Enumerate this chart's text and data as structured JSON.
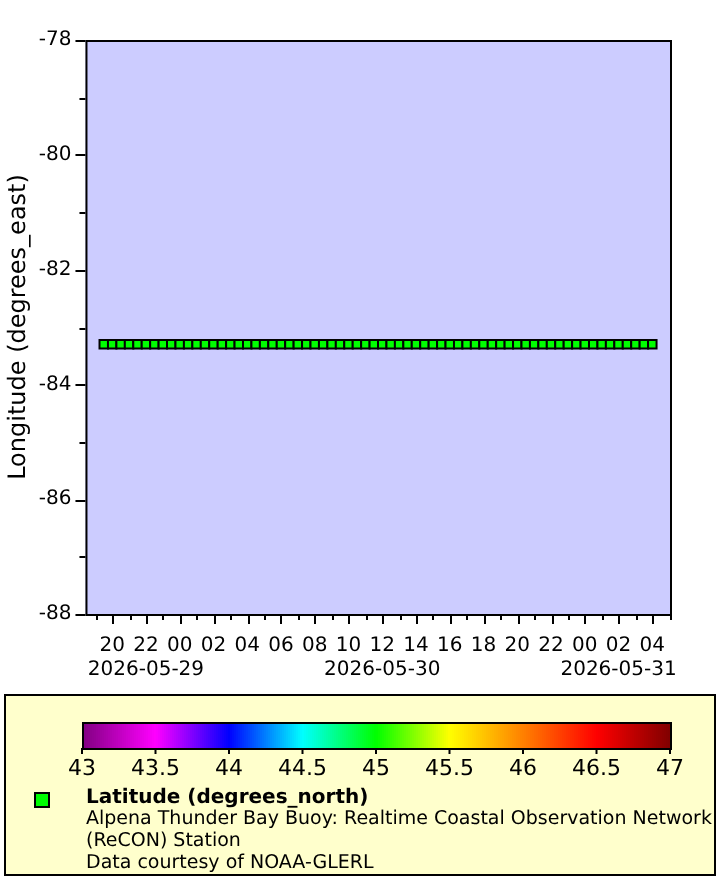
{
  "chart_data": {
    "type": "scatter",
    "xlabel": null,
    "ylabel": "Longitude (degrees_east)",
    "clabel": "Latitude (degrees_north)",
    "annotations": [
      "Alpena Thunder Bay Buoy: Realtime Coastal Observation Network (ReCON) Station",
      "Data courtesy of NOAA-GLERL"
    ],
    "x": [
      "2026-05-29T19:30",
      "2026-05-29T20:00",
      "2026-05-29T20:30",
      "2026-05-29T21:00",
      "2026-05-29T21:30",
      "2026-05-29T22:00",
      "2026-05-29T22:30",
      "2026-05-29T23:00",
      "2026-05-29T23:30",
      "2026-05-30T00:00",
      "2026-05-30T00:30",
      "2026-05-30T01:00",
      "2026-05-30T01:30",
      "2026-05-30T02:00",
      "2026-05-30T02:30",
      "2026-05-30T03:00",
      "2026-05-30T03:30",
      "2026-05-30T04:00",
      "2026-05-30T04:30",
      "2026-05-30T05:00",
      "2026-05-30T05:30",
      "2026-05-30T06:00",
      "2026-05-30T06:30",
      "2026-05-30T07:00",
      "2026-05-30T07:30",
      "2026-05-30T08:00",
      "2026-05-30T08:30",
      "2026-05-30T09:00",
      "2026-05-30T09:30",
      "2026-05-30T10:00",
      "2026-05-30T10:30",
      "2026-05-30T11:00",
      "2026-05-30T11:30",
      "2026-05-30T12:00",
      "2026-05-30T12:30",
      "2026-05-30T13:00",
      "2026-05-30T13:30",
      "2026-05-30T14:00",
      "2026-05-30T14:30",
      "2026-05-30T15:00",
      "2026-05-30T15:30",
      "2026-05-30T16:00",
      "2026-05-30T16:30",
      "2026-05-30T17:00",
      "2026-05-30T17:30",
      "2026-05-30T18:00",
      "2026-05-30T18:30",
      "2026-05-30T19:00",
      "2026-05-30T19:30",
      "2026-05-30T20:00",
      "2026-05-30T20:30",
      "2026-05-30T21:00",
      "2026-05-30T21:30",
      "2026-05-30T22:00",
      "2026-05-30T22:30",
      "2026-05-30T23:00",
      "2026-05-30T23:30",
      "2026-05-31T00:00",
      "2026-05-31T00:30",
      "2026-05-31T01:00",
      "2026-05-31T01:30",
      "2026-05-31T02:00",
      "2026-05-31T02:30",
      "2026-05-31T03:00",
      "2026-05-31T03:30",
      "2026-05-31T04:00"
    ],
    "values": [
      -83.3,
      -83.3,
      -83.3,
      -83.3,
      -83.3,
      -83.3,
      -83.3,
      -83.3,
      -83.3,
      -83.3,
      -83.3,
      -83.3,
      -83.3,
      -83.3,
      -83.3,
      -83.3,
      -83.3,
      -83.3,
      -83.3,
      -83.3,
      -83.3,
      -83.3,
      -83.3,
      -83.3,
      -83.3,
      -83.3,
      -83.3,
      -83.3,
      -83.3,
      -83.3,
      -83.3,
      -83.3,
      -83.3,
      -83.3,
      -83.3,
      -83.3,
      -83.3,
      -83.3,
      -83.3,
      -83.3,
      -83.3,
      -83.3,
      -83.3,
      -83.3,
      -83.3,
      -83.3,
      -83.3,
      -83.3,
      -83.3,
      -83.3,
      -83.3,
      -83.3,
      -83.3,
      -83.3,
      -83.3,
      -83.3,
      -83.3,
      -83.3,
      -83.3,
      -83.3,
      -83.3,
      -83.3,
      -83.3,
      -83.3,
      -83.3,
      -83.3
    ],
    "cvalues": [
      45,
      45,
      45,
      45,
      45,
      45,
      45,
      45,
      45,
      45,
      45,
      45,
      45,
      45,
      45,
      45,
      45,
      45,
      45,
      45,
      45,
      45,
      45,
      45,
      45,
      45,
      45,
      45,
      45,
      45,
      45,
      45,
      45,
      45,
      45,
      45,
      45,
      45,
      45,
      45,
      45,
      45,
      45,
      45,
      45,
      45,
      45,
      45,
      45,
      45,
      45,
      45,
      45,
      45,
      45,
      45,
      45,
      45,
      45,
      45,
      45,
      45,
      45,
      45,
      45,
      45
    ],
    "clim": [
      43,
      47
    ],
    "cticks": [
      43,
      43.5,
      44,
      44.5,
      45,
      45.5,
      46,
      46.5,
      47
    ],
    "xlim": [
      "2026-05-29T18:25",
      "2026-05-31T05:10"
    ],
    "xticks": [
      {
        "value": "2026-05-29T19:00",
        "label": null
      },
      {
        "value": "2026-05-29T20:00",
        "label": "20"
      },
      {
        "value": "2026-05-29T21:00",
        "label": null
      },
      {
        "value": "2026-05-29T22:00",
        "label": "22\n2026-05-29"
      },
      {
        "value": "2026-05-29T23:00",
        "label": null
      },
      {
        "value": "2026-05-30T00:00",
        "label": "00"
      },
      {
        "value": "2026-05-30T01:00",
        "label": null
      },
      {
        "value": "2026-05-30T02:00",
        "label": "02"
      },
      {
        "value": "2026-05-30T03:00",
        "label": null
      },
      {
        "value": "2026-05-30T04:00",
        "label": "04"
      },
      {
        "value": "2026-05-30T05:00",
        "label": null
      },
      {
        "value": "2026-05-30T06:00",
        "label": "06"
      },
      {
        "value": "2026-05-30T07:00",
        "label": null
      },
      {
        "value": "2026-05-30T08:00",
        "label": "08"
      },
      {
        "value": "2026-05-30T09:00",
        "label": null
      },
      {
        "value": "2026-05-30T10:00",
        "label": "10"
      },
      {
        "value": "2026-05-30T11:00",
        "label": null
      },
      {
        "value": "2026-05-30T12:00",
        "label": "12\n2026-05-30"
      },
      {
        "value": "2026-05-30T13:00",
        "label": null
      },
      {
        "value": "2026-05-30T14:00",
        "label": "14"
      },
      {
        "value": "2026-05-30T15:00",
        "label": null
      },
      {
        "value": "2026-05-30T16:00",
        "label": "16"
      },
      {
        "value": "2026-05-30T17:00",
        "label": null
      },
      {
        "value": "2026-05-30T18:00",
        "label": "18"
      },
      {
        "value": "2026-05-30T19:00",
        "label": null
      },
      {
        "value": "2026-05-30T20:00",
        "label": "20"
      },
      {
        "value": "2026-05-30T21:00",
        "label": null
      },
      {
        "value": "2026-05-30T22:00",
        "label": "22"
      },
      {
        "value": "2026-05-30T23:00",
        "label": null
      },
      {
        "value": "2026-05-31T00:00",
        "label": "00"
      },
      {
        "value": "2026-05-31T01:00",
        "label": null
      },
      {
        "value": "2026-05-31T02:00",
        "label": "02\n2026-05-31"
      },
      {
        "value": "2026-05-31T03:00",
        "label": null
      },
      {
        "value": "2026-05-31T04:00",
        "label": "04"
      },
      {
        "value": "2026-05-31T05:00",
        "label": null
      }
    ],
    "ylim": [
      -88,
      -78
    ],
    "yticks": [
      -88,
      {
        "value": -87,
        "label": null
      },
      -86,
      {
        "value": -85,
        "label": null
      },
      -84,
      {
        "value": -83,
        "label": null
      },
      -82,
      {
        "value": -81,
        "label": null
      },
      -80,
      {
        "value": -79,
        "label": null
      },
      -78
    ],
    "marker": "square",
    "grid": false
  }
}
